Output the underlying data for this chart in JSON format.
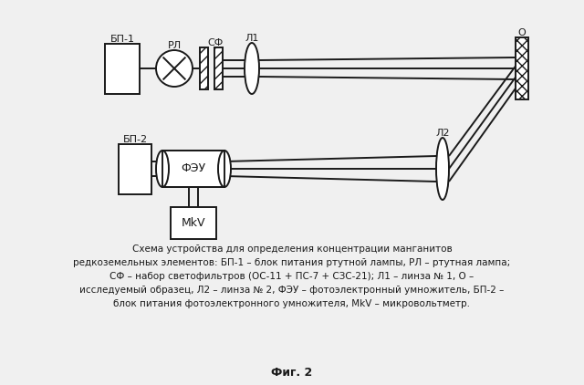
{
  "bg_color": "#f0f0f0",
  "line_color": "#1a1a1a",
  "title": "Фиг. 2",
  "caption_lines": [
    "Схема устройства для определения концентрации манганитов",
    "редкоземельных элементов: БП-1 – блок питания ртутной лампы, РЛ – ртутная лампа;",
    "СФ – набор светофильтров (ОС-11 + ПС-7 + СЗС-21); Л1 – линза № 1, О –",
    "исследуемый образец, Л2 – линза № 2, ФЭУ – фотоэлектронный умножитель, БП-2 –",
    "блок питания фотоэлектронного умножителя, MkV – микровольтметр."
  ],
  "labels": {
    "BP1": "БП-1",
    "RL": "РЛ",
    "SF": "СФ",
    "L1": "Л1",
    "O": "О",
    "BP2": "БП-2",
    "FEU": "ФЭУ",
    "L2": "Л2",
    "MkV": "MkV"
  }
}
